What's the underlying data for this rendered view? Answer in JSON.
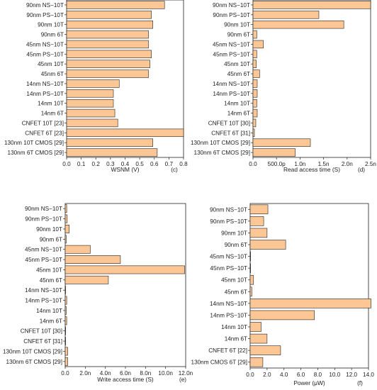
{
  "colors": {
    "bar_fill": "#fcc794",
    "bar_stroke": "#222222",
    "axis": "#222222",
    "background": "#ffffff"
  },
  "chart_data": [
    {
      "type": "bar",
      "orientation": "horizontal",
      "panel_label": "(c)",
      "xlabel": "WSNM (V)",
      "xlim": [
        0.0,
        0.8
      ],
      "xticks": [
        "0.0",
        "0.1",
        "0.2",
        "0.3",
        "0.4",
        "0.5",
        "0.6",
        "0.7",
        "0.8"
      ],
      "categories": [
        "90nm NS−10T",
        "90nm PS−10T",
        "90nm 10T",
        "90nm 6T",
        "45nm NS−10T",
        "45nm PS−10T",
        "45nm 10T",
        "45nm 6T",
        "14nm NS−10T",
        "14nm PS−10T",
        "14nm 10T",
        "14nm 6T",
        "CNFET 10T [23]",
        "CNFET 6T [23]",
        "130nm 10T CMOS [29]",
        "130nm 6T CMOS [29]"
      ],
      "values": [
        0.67,
        0.58,
        0.59,
        0.56,
        0.56,
        0.58,
        0.57,
        0.56,
        0.36,
        0.32,
        0.32,
        0.33,
        0.35,
        0.8,
        0.59,
        0.62
      ]
    },
    {
      "type": "bar",
      "orientation": "horizontal",
      "panel_label": "(d)",
      "xlabel": "Read access time (S)",
      "xlim": [
        0.0,
        2.5e-09
      ],
      "xticks": [
        "0.0",
        "500.0p",
        "1.0n",
        "1.5n",
        "2.0n",
        "2.5n"
      ],
      "categories": [
        "90nm NS−10T",
        "90nm PS−10T",
        "90nm 10T",
        "90nm 6T",
        "45nm NS−10T",
        "45nm PS−10T",
        "45nm 10T",
        "45nm 6T",
        "14nm NS−10T",
        "14nm PS−10T",
        "14nm 10T",
        "14nm 6T",
        "CNFET 10T [30]",
        "CNFET 6T [31]",
        "130nm 10T CMOS [29]",
        "130nm 6T CMOS [29]"
      ],
      "values": [
        2.5e-09,
        1.4e-09,
        1.93e-09,
        8e-11,
        2.2e-10,
        8e-11,
        7e-11,
        1.4e-10,
        9e-11,
        9e-11,
        8e-11,
        9e-11,
        6e-11,
        3e-11,
        1.22e-09,
        9e-10
      ]
    },
    {
      "type": "bar",
      "orientation": "horizontal",
      "panel_label": "(e)",
      "xlabel": "Write access time (S)",
      "xlim": [
        0.0,
        1.2e-08
      ],
      "xticks": [
        "0.0",
        "2.0n",
        "4.0n",
        "6.0n",
        "8.0n",
        "10.0n",
        "12.0n"
      ],
      "categories": [
        "90nm NS−10T",
        "90nm PS−10T",
        "90nm 10T",
        "90nm 6T",
        "45nm NS−10T",
        "45nm PS−10T",
        "45nm 10T",
        "45nm 6T",
        "14nm NS−10T",
        "14nm PS−10T",
        "14nm 10T",
        "14nm 6T",
        "CNFET 10T [30]",
        "CNFET 6T [31]",
        "130nm 10T CMOS [29]",
        "130nm 6T CMOS [29]"
      ],
      "values": [
        1.5e-10,
        2e-10,
        4e-10,
        1e-10,
        2.5e-09,
        5.5e-09,
        1.19e-08,
        4.3e-09,
        5e-11,
        1.5e-10,
        1e-10,
        1.5e-10,
        3e-11,
        3e-11,
        2.5e-10,
        2.5e-10
      ]
    },
    {
      "type": "bar",
      "orientation": "horizontal",
      "panel_label": "(f)",
      "xlabel": "Power (μW)",
      "xlim": [
        0.0,
        14.0
      ],
      "xticks": [
        "0.0",
        "2.0",
        "4.0",
        "6.0",
        "8.0",
        "10.0",
        "12.0",
        "14.0"
      ],
      "categories": [
        "90nm NS−10T",
        "90nm PS−10T",
        "90nm 10T",
        "90nm 6T",
        "45nm NS−10T",
        "45nm PS−10T",
        "45nm 10T",
        "45nm 6T",
        "14nm NS−10T",
        "14nm PS−10T",
        "14nm 10T",
        "14nm 6T",
        "CNFET 6T [22]",
        "130nm CMOS 6T [29]"
      ],
      "values": [
        2.1,
        1.6,
        2.0,
        4.2,
        0.05,
        0.05,
        0.4,
        0.2,
        14.3,
        7.6,
        1.3,
        2.0,
        3.6,
        1.5
      ]
    }
  ]
}
